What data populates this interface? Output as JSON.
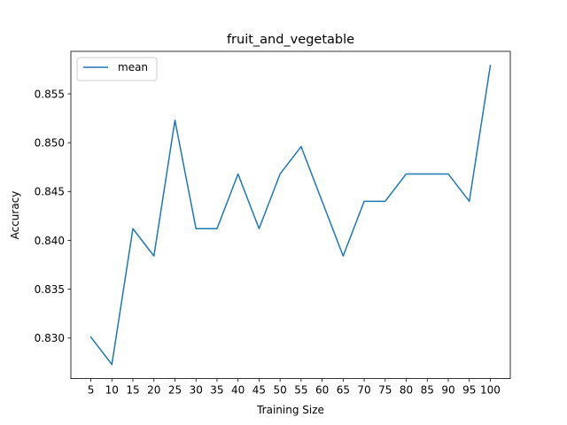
{
  "chart_data": {
    "type": "line",
    "title": "fruit_and_vegetable",
    "xlabel": "Training Size",
    "ylabel": "Accuracy",
    "x": [
      5,
      10,
      15,
      20,
      25,
      30,
      35,
      40,
      45,
      50,
      55,
      60,
      65,
      70,
      75,
      80,
      85,
      90,
      95,
      100
    ],
    "series": [
      {
        "name": "mean",
        "color": "#1f77b4",
        "values": [
          0.8301,
          0.8273,
          0.8412,
          0.8384,
          0.8523,
          0.8412,
          0.8412,
          0.8468,
          0.8412,
          0.8468,
          0.8496,
          0.844,
          0.8384,
          0.844,
          0.844,
          0.8468,
          0.8468,
          0.8468,
          0.844,
          0.8579
        ]
      }
    ],
    "xticks": [
      "5",
      "10",
      "15",
      "20",
      "25",
      "30",
      "35",
      "40",
      "45",
      "50",
      "55",
      "60",
      "65",
      "70",
      "75",
      "80",
      "85",
      "90",
      "95",
      "100"
    ],
    "yticks": [
      "0.830",
      "0.835",
      "0.840",
      "0.845",
      "0.850",
      "0.855"
    ],
    "ylim": [
      0.82585,
      0.85935
    ],
    "xlim": [
      0.25,
      104.75
    ],
    "grid": false,
    "legend": "top-left"
  }
}
